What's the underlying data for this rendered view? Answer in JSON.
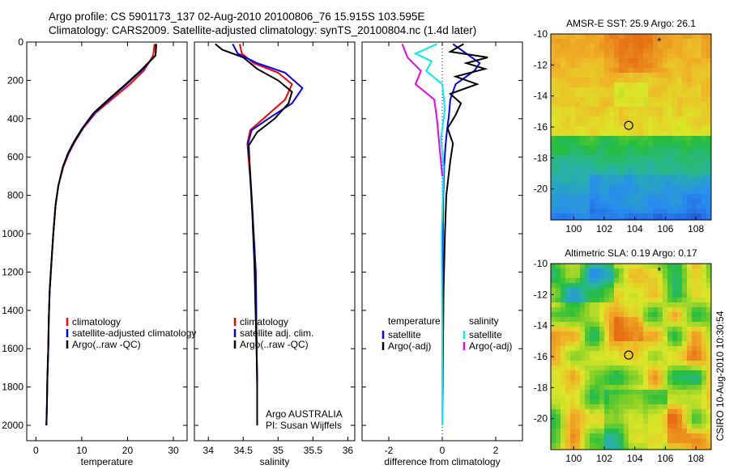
{
  "header": {
    "line1": "Argo profile: CS 5901173_137 02-Aug-2010 20100806_76 15.915S 103.595E",
    "line2": "Climatology: CARS2009. Satellite-adjusted climatology: synTS_20100804.nc (1.4d later)"
  },
  "side_stamp": "CSIRO 10-Aug-2010 10:30:54",
  "chart_data": [
    {
      "type": "line",
      "panel": "temperature",
      "xlabel": "temperature",
      "xlim": [
        -2,
        33
      ],
      "ylim": [
        0,
        2080
      ],
      "y_reversed": true,
      "xticks": [
        0,
        10,
        20,
        30
      ],
      "yticks": [
        0,
        200,
        400,
        600,
        800,
        1000,
        1200,
        1400,
        1600,
        1800,
        2000
      ],
      "grid": false,
      "legend_position": "lower-middle",
      "series": [
        {
          "name": "climatology",
          "color": "#ff0000",
          "x": [
            25.9,
            25.6,
            23.5,
            20.5,
            16.5,
            13.0,
            10.3,
            8.5,
            7.2,
            6.0,
            4.9,
            4.3,
            3.8,
            3.4,
            3.0,
            2.8,
            2.7,
            2.5,
            2.4,
            2.3
          ],
          "y": [
            10,
            70,
            150,
            220,
            300,
            370,
            450,
            520,
            580,
            650,
            750,
            850,
            1000,
            1150,
            1300,
            1450,
            1600,
            1750,
            1900,
            2000
          ]
        },
        {
          "name": "satellite-adjusted climatology",
          "color": "#0000ff",
          "x": [
            26.3,
            26.1,
            23.0,
            19.8,
            16.0,
            12.8,
            10.2,
            8.4,
            7.1,
            5.9,
            4.9,
            4.3,
            3.8,
            3.4,
            3.0,
            2.8,
            2.7,
            2.5,
            2.4,
            2.3
          ],
          "y": [
            10,
            70,
            150,
            220,
            300,
            370,
            450,
            520,
            580,
            650,
            750,
            850,
            1000,
            1150,
            1300,
            1450,
            1600,
            1750,
            1900,
            2000
          ]
        },
        {
          "name": "Argo(..raw -QC)",
          "color": "#000000",
          "x": [
            26.2,
            26.1,
            22.8,
            19.6,
            15.8,
            12.6,
            10.1,
            8.3,
            7.0,
            5.9,
            4.9,
            4.3,
            3.8,
            3.4,
            3.0,
            2.8,
            2.7,
            2.5,
            2.4,
            2.3
          ],
          "y": [
            10,
            70,
            150,
            220,
            300,
            370,
            450,
            520,
            580,
            650,
            750,
            850,
            1000,
            1150,
            1300,
            1450,
            1600,
            1750,
            1900,
            2000
          ]
        }
      ]
    },
    {
      "type": "line",
      "panel": "salinity",
      "xlabel": "salinity",
      "xlim": [
        33.8,
        36.1
      ],
      "ylim": [
        0,
        2080
      ],
      "y_reversed": true,
      "xticks": [
        34,
        34.5,
        35,
        35.5,
        36
      ],
      "grid": false,
      "legend_position": "lower-middle",
      "annotations": [
        "Argo AUSTRALIA",
        "PI: Susan Wijffels"
      ],
      "series": [
        {
          "name": "climatology",
          "color": "#ff0000",
          "x": [
            34.45,
            34.48,
            34.65,
            35.0,
            35.2,
            35.1,
            34.85,
            34.6,
            34.56,
            34.58,
            34.62,
            34.65,
            34.68,
            34.69,
            34.7,
            34.7
          ],
          "y": [
            10,
            60,
            110,
            160,
            220,
            300,
            380,
            460,
            530,
            620,
            800,
            1000,
            1200,
            1500,
            1800,
            2000
          ]
        },
        {
          "name": "satellite adj. clim.",
          "color": "#0000ff",
          "x": [
            34.35,
            34.42,
            34.7,
            35.1,
            35.35,
            35.2,
            34.9,
            34.62,
            34.57,
            34.59,
            34.62,
            34.65,
            34.68,
            34.69,
            34.7,
            34.7
          ],
          "y": [
            10,
            60,
            110,
            160,
            240,
            320,
            390,
            460,
            530,
            620,
            800,
            1000,
            1200,
            1500,
            1800,
            2000
          ]
        },
        {
          "name": "Argo(..raw -QC)",
          "color": "#000000",
          "x": [
            34.1,
            34.2,
            34.5,
            34.7,
            35.0,
            35.2,
            35.15,
            34.95,
            34.7,
            34.58,
            34.6,
            34.63,
            34.66,
            34.68,
            34.7,
            34.7
          ],
          "y": [
            10,
            40,
            80,
            140,
            200,
            260,
            320,
            400,
            470,
            540,
            700,
            900,
            1150,
            1450,
            1750,
            2000
          ]
        }
      ]
    },
    {
      "type": "line",
      "panel": "difference",
      "xlabel": "difference from climatology",
      "xlim": [
        -3,
        3
      ],
      "ylim": [
        0,
        2080
      ],
      "y_reversed": true,
      "xticks": [
        -2,
        0,
        2
      ],
      "grid": false,
      "zero_line": true,
      "legend_position": "lower-middle",
      "legend_groups": {
        "temperature": "temperature",
        "salinity": "salinity"
      },
      "series": [
        {
          "name": "satellite",
          "group": "temperature",
          "color": "#0000ff",
          "x": [
            0.4,
            0.9,
            1.4,
            1.2,
            0.5,
            0.3,
            0.25,
            0.18,
            0.12,
            0.07,
            0.04,
            0.02,
            0.01,
            0.0,
            0.0
          ],
          "y": [
            10,
            60,
            110,
            150,
            220,
            300,
            380,
            460,
            540,
            650,
            800,
            1000,
            1300,
            1700,
            2000
          ]
        },
        {
          "name": "Argo(-adj)",
          "group": "temperature",
          "color": "#000000",
          "x": [
            0.8,
            0.3,
            1.7,
            0.9,
            1.6,
            0.5,
            1.3,
            0.3,
            0.7,
            0.5,
            0.2,
            0.4,
            0.3,
            0.15,
            0.1,
            0.05,
            0.02,
            0.0
          ],
          "y": [
            10,
            50,
            80,
            110,
            140,
            180,
            220,
            270,
            320,
            380,
            450,
            530,
            620,
            800,
            1000,
            1300,
            1700,
            2000
          ]
        },
        {
          "name": "satellite",
          "group": "salinity",
          "color": "#00eeee",
          "x": [
            -0.2,
            -1.0,
            -0.4,
            -0.6,
            0.0,
            0.1,
            -0.05,
            0.05,
            0.02,
            -0.02,
            0.0,
            0.0
          ],
          "y": [
            10,
            60,
            100,
            150,
            220,
            350,
            500,
            650,
            800,
            1000,
            1500,
            2000
          ]
        },
        {
          "name": "Argo(-adj)",
          "group": "salinity",
          "color": "#ee00ee",
          "x": [
            -1.5,
            -1.3,
            -0.8,
            -1.0,
            -0.3,
            -0.2,
            -0.1,
            0.0
          ],
          "y": [
            10,
            80,
            150,
            220,
            300,
            400,
            550,
            700
          ]
        }
      ]
    },
    {
      "type": "heatmap",
      "panel": "sst-map",
      "title": "AMSR-E SST: 25.9 Argo: 26.1",
      "xlim": [
        98.5,
        109
      ],
      "ylim": [
        -22,
        -10
      ],
      "xticks": [
        100,
        102,
        104,
        106,
        108
      ],
      "yticks": [
        -10,
        -12,
        -14,
        -16,
        -18,
        -20
      ],
      "marker": {
        "lon": 103.6,
        "lat": -15.9
      },
      "asterisk": {
        "lon": 105.6,
        "lat": -10.4
      }
    },
    {
      "type": "heatmap",
      "panel": "sla-map",
      "title": "Altimetric SLA: 0.19 Argo: 0.17",
      "xlim": [
        98.5,
        109
      ],
      "ylim": [
        -22,
        -10
      ],
      "xticks": [
        100,
        102,
        104,
        106,
        108
      ],
      "yticks": [
        -10,
        -12,
        -14,
        -16,
        -18,
        -20
      ],
      "marker": {
        "lon": 103.6,
        "lat": -15.9
      },
      "asterisk": {
        "lon": 105.6,
        "lat": -10.4
      }
    }
  ]
}
